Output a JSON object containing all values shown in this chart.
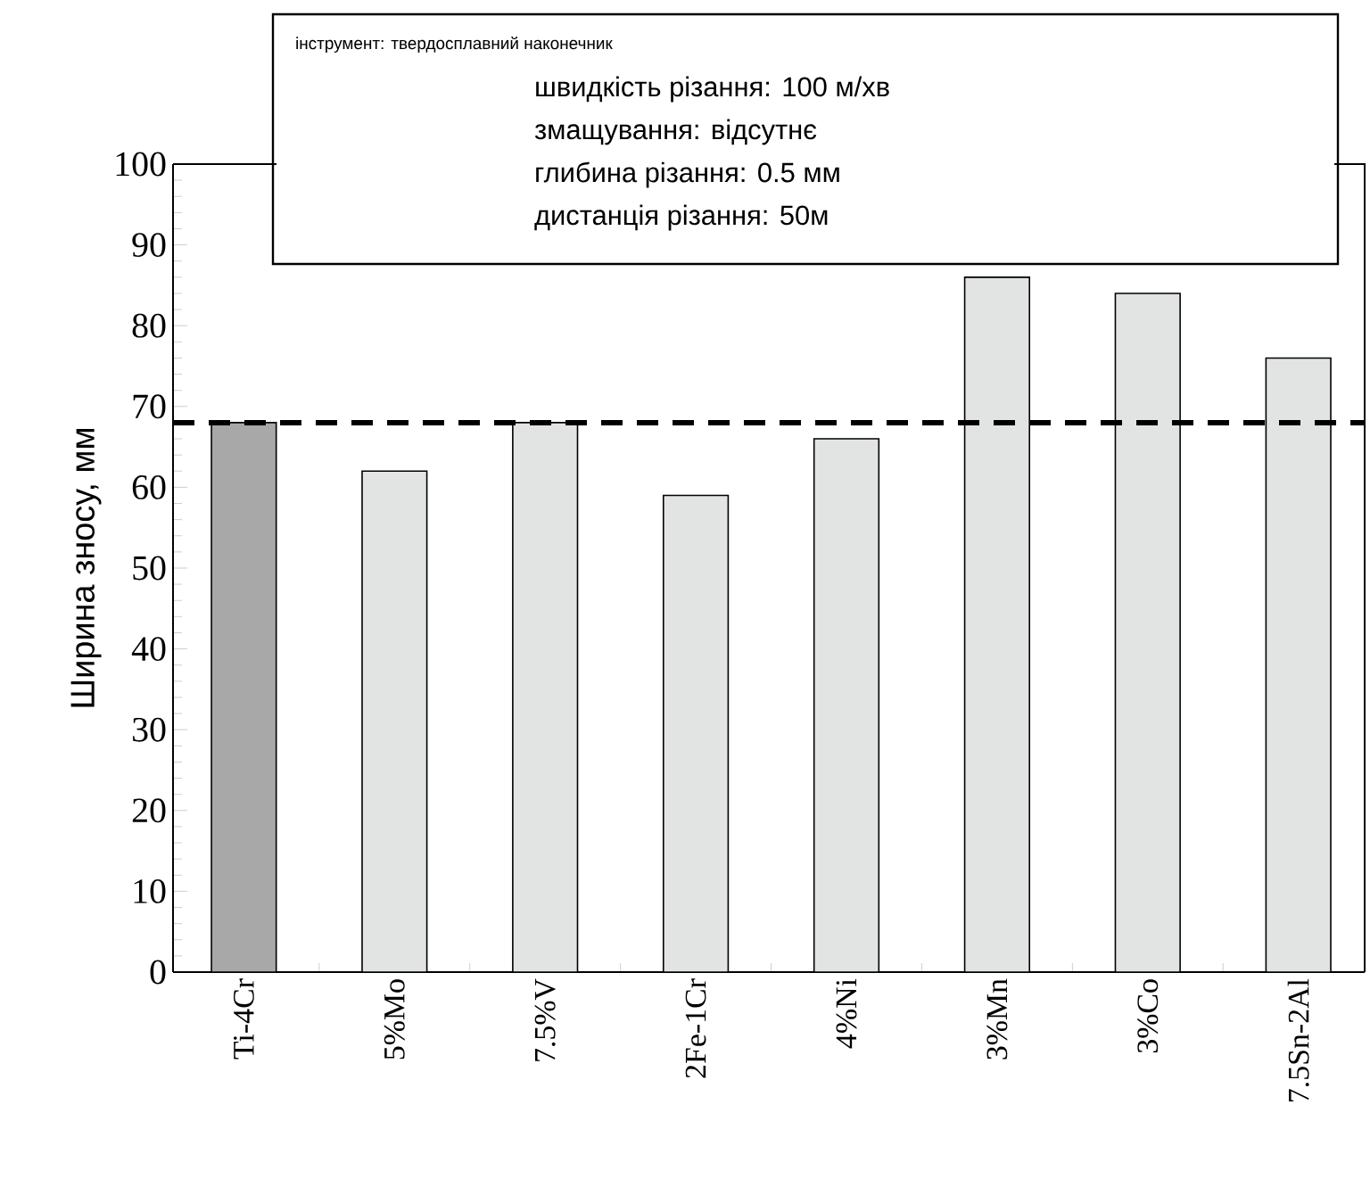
{
  "chart_data": {
    "type": "bar",
    "ylabel": "Ширина зносу, мм",
    "categories": [
      "Ti-4Cr",
      "5%Mo",
      "7.5%V",
      "2Fe-1Cr",
      "4%Ni",
      "3%Mn",
      "3%Co",
      "7.5Sn-2Al"
    ],
    "values": [
      68,
      62,
      68,
      59,
      66,
      86,
      84,
      76
    ],
    "colors": [
      "#a8a8a8",
      "#e2e4e4",
      "#e2e4e4",
      "#e2e4e4",
      "#e2e4e4",
      "#e2e4e4",
      "#e2e4e4",
      "#e2e4e4"
    ],
    "ylim": [
      0,
      100
    ],
    "yticks": [
      0,
      10,
      20,
      30,
      40,
      50,
      60,
      70,
      80,
      90,
      100
    ],
    "ref_lines": [
      {
        "axis": "y",
        "value": 68,
        "color": "#000000",
        "line_style": "dashed"
      }
    ],
    "annotations": [
      "інструмент: твердосплавний наконечник",
      "швидкість різання: 100 м/хв",
      "змащування: відсутнє",
      "глибина різання: 0.5 мм",
      "дистанція різання: 50м"
    ]
  }
}
